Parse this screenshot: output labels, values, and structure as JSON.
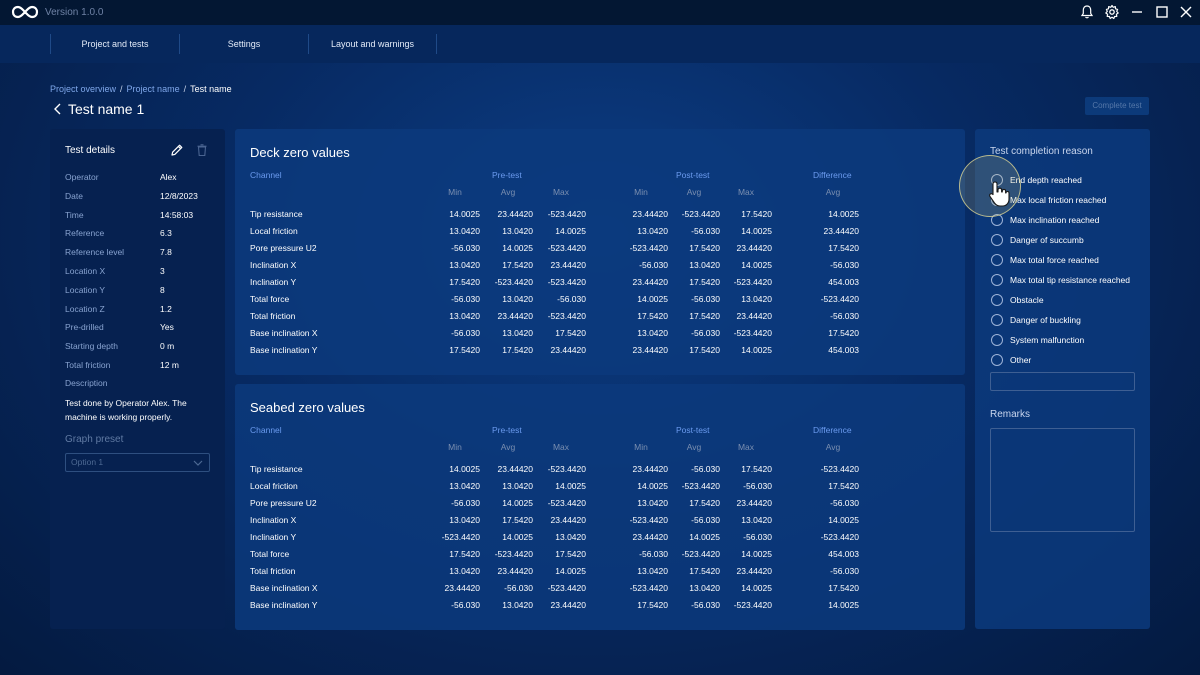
{
  "app": {
    "version": "Version 1.0.0",
    "icons": [
      "infinity-logo-icon",
      "bell-icon",
      "gear-icon",
      "minimize-icon",
      "maximize-icon",
      "close-icon"
    ]
  },
  "nav": {
    "tabs": [
      {
        "label": "Project and tests"
      },
      {
        "label": "Settings"
      },
      {
        "label": "Layout and warnings"
      }
    ]
  },
  "breadcrumb": {
    "items": [
      "Project overview",
      "Project name",
      "Test name"
    ],
    "separator": "/"
  },
  "page": {
    "title": "Test name 1",
    "complete_button": "Complete test"
  },
  "details": {
    "title": "Test details",
    "rows": [
      {
        "label": "Operator",
        "value": "Alex"
      },
      {
        "label": "Date",
        "value": "12/8/2023"
      },
      {
        "label": "Time",
        "value": "14:58:03"
      },
      {
        "label": "Reference",
        "value": "6.3"
      },
      {
        "label": "Reference level",
        "value": "7.8"
      },
      {
        "label": "Location X",
        "value": "3"
      },
      {
        "label": "Location Y",
        "value": "8"
      },
      {
        "label": "Location Z",
        "value": "1.2"
      },
      {
        "label": "Pre-drilled",
        "value": "Yes"
      },
      {
        "label": "Starting depth",
        "value": "0 m"
      },
      {
        "label": "Total friction",
        "value": "12 m"
      }
    ],
    "description_label": "Description",
    "description": "Test done by Operator Alex. The machine is working properly.",
    "graph_preset_label": "Graph preset",
    "graph_preset_value": "Option 1"
  },
  "table_headers": {
    "channel": "Channel",
    "pre": "Pre-test",
    "post": "Post-test",
    "diff": "Difference",
    "min": "Min",
    "avg": "Avg",
    "max": "Max"
  },
  "deck": {
    "title": "Deck zero values",
    "rows": [
      {
        "channel": "Tip resistance",
        "values": [
          "14.0025",
          "23.44420",
          "-523.4420",
          "23.44420",
          "-523.4420",
          "17.5420",
          "14.0025"
        ]
      },
      {
        "channel": "Local friction",
        "values": [
          "13.0420",
          "13.0420",
          "14.0025",
          "13.0420",
          "-56.030",
          "14.0025",
          "23.44420"
        ]
      },
      {
        "channel": "Pore pressure U2",
        "values": [
          "-56.030",
          "14.0025",
          "-523.4420",
          "-523.4420",
          "17.5420",
          "23.44420",
          "17.5420"
        ]
      },
      {
        "channel": "Inclination X",
        "values": [
          "13.0420",
          "17.5420",
          "23.44420",
          "-56.030",
          "13.0420",
          "14.0025",
          "-56.030"
        ]
      },
      {
        "channel": "Inclination Y",
        "values": [
          "17.5420",
          "-523.4420",
          "-523.4420",
          "23.44420",
          "17.5420",
          "-523.4420",
          "454.003"
        ]
      },
      {
        "channel": "Total force",
        "values": [
          "-56.030",
          "13.0420",
          "-56.030",
          "14.0025",
          "-56.030",
          "13.0420",
          "-523.4420"
        ]
      },
      {
        "channel": "Total friction",
        "values": [
          "13.0420",
          "23.44420",
          "-523.4420",
          "17.5420",
          "17.5420",
          "23.44420",
          "-56.030"
        ]
      },
      {
        "channel": "Base inclination X",
        "values": [
          "-56.030",
          "13.0420",
          "17.5420",
          "13.0420",
          "-56.030",
          "-523.4420",
          "17.5420"
        ]
      },
      {
        "channel": "Base inclination Y",
        "values": [
          "17.5420",
          "17.5420",
          "23.44420",
          "23.44420",
          "17.5420",
          "14.0025",
          "454.003"
        ]
      }
    ]
  },
  "seabed": {
    "title": "Seabed zero values",
    "rows": [
      {
        "channel": "Tip resistance",
        "values": [
          "14.0025",
          "23.44420",
          "-523.4420",
          "23.44420",
          "-56.030",
          "17.5420",
          "-523.4420"
        ]
      },
      {
        "channel": "Local friction",
        "values": [
          "13.0420",
          "13.0420",
          "14.0025",
          "14.0025",
          "-523.4420",
          "-56.030",
          "17.5420"
        ]
      },
      {
        "channel": "Pore pressure U2",
        "values": [
          "-56.030",
          "14.0025",
          "-523.4420",
          "13.0420",
          "17.5420",
          "23.44420",
          "-56.030"
        ]
      },
      {
        "channel": "Inclination X",
        "values": [
          "13.0420",
          "17.5420",
          "23.44420",
          "-523.4420",
          "-56.030",
          "13.0420",
          "14.0025"
        ]
      },
      {
        "channel": "Inclination Y",
        "values": [
          "-523.4420",
          "14.0025",
          "13.0420",
          "23.44420",
          "14.0025",
          "-56.030",
          "-523.4420"
        ]
      },
      {
        "channel": "Total force",
        "values": [
          "17.5420",
          "-523.4420",
          "17.5420",
          "-56.030",
          "-523.4420",
          "14.0025",
          "454.003"
        ]
      },
      {
        "channel": "Total friction",
        "values": [
          "13.0420",
          "23.44420",
          "14.0025",
          "13.0420",
          "17.5420",
          "23.44420",
          "-56.030"
        ]
      },
      {
        "channel": "Base inclination X",
        "values": [
          "23.44420",
          "-56.030",
          "-523.4420",
          "-523.4420",
          "13.0420",
          "14.0025",
          "17.5420"
        ]
      },
      {
        "channel": "Base inclination Y",
        "values": [
          "-56.030",
          "13.0420",
          "23.44420",
          "17.5420",
          "-56.030",
          "-523.4420",
          "14.0025"
        ]
      }
    ]
  },
  "completion": {
    "title": "Test completion reason",
    "options": [
      "End depth reached",
      "Max local friction reached",
      "Max inclination reached",
      "Danger of succumb",
      "Max total force reached",
      "Max total tip resistance reached",
      "Obstacle",
      "Danger of buckling",
      "System malfunction",
      "Other"
    ],
    "other_input_value": "",
    "remarks_label": "Remarks",
    "remarks_value": ""
  },
  "colors": {
    "accent_link": "#7fa7ea",
    "column_group": "#6b9bef",
    "panel": "#0c3a7d",
    "panel_dark": "#062150"
  }
}
